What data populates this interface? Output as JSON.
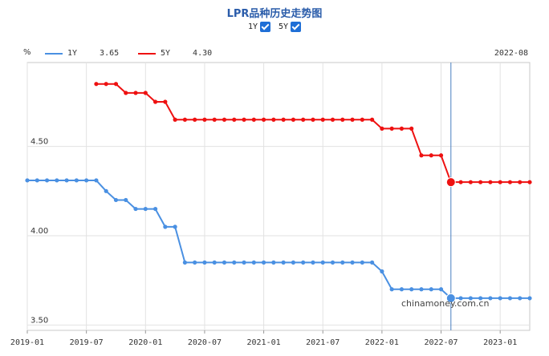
{
  "title": "LPR品种历史走势图",
  "toggles": [
    {
      "label": "1Y",
      "checked": true
    },
    {
      "label": "5Y",
      "checked": true
    }
  ],
  "unit": "%",
  "date_label": "2022-08",
  "watermark": "chinamoney.com.cn",
  "legend": [
    {
      "name": "1Y",
      "value": "3.65",
      "color": "#4a90e2"
    },
    {
      "name": "5Y",
      "value": "4.30",
      "color": "#ee1111"
    }
  ],
  "chart_data": {
    "type": "line",
    "x_ticks": [
      "2019-01",
      "2019-07",
      "2020-01",
      "2020-07",
      "2021-01",
      "2021-07",
      "2022-01",
      "2022-07",
      "2023-01"
    ],
    "y_ticks": [
      "4.50",
      "4.00",
      "3.50"
    ],
    "ylim": [
      3.47,
      4.97
    ],
    "cursor_index": 43,
    "series": [
      {
        "name": "1Y",
        "color": "#4a90e2",
        "start_index": 0,
        "values": [
          4.31,
          4.31,
          4.31,
          4.31,
          4.31,
          4.31,
          4.31,
          4.31,
          4.25,
          4.2,
          4.2,
          4.15,
          4.15,
          4.15,
          4.05,
          4.05,
          3.85,
          3.85,
          3.85,
          3.85,
          3.85,
          3.85,
          3.85,
          3.85,
          3.85,
          3.85,
          3.85,
          3.85,
          3.85,
          3.85,
          3.85,
          3.85,
          3.85,
          3.85,
          3.85,
          3.85,
          3.8,
          3.7,
          3.7,
          3.7,
          3.7,
          3.7,
          3.7,
          3.65,
          3.65,
          3.65,
          3.65,
          3.65,
          3.65,
          3.65,
          3.65,
          3.65
        ]
      },
      {
        "name": "5Y",
        "color": "#ee1111",
        "start_index": 7,
        "values": [
          4.85,
          4.85,
          4.85,
          4.8,
          4.8,
          4.8,
          4.75,
          4.75,
          4.65,
          4.65,
          4.65,
          4.65,
          4.65,
          4.65,
          4.65,
          4.65,
          4.65,
          4.65,
          4.65,
          4.65,
          4.65,
          4.65,
          4.65,
          4.65,
          4.65,
          4.65,
          4.65,
          4.65,
          4.65,
          4.6,
          4.6,
          4.6,
          4.6,
          4.45,
          4.45,
          4.45,
          4.3,
          4.3,
          4.3,
          4.3,
          4.3,
          4.3,
          4.3,
          4.3,
          4.3
        ]
      }
    ]
  }
}
